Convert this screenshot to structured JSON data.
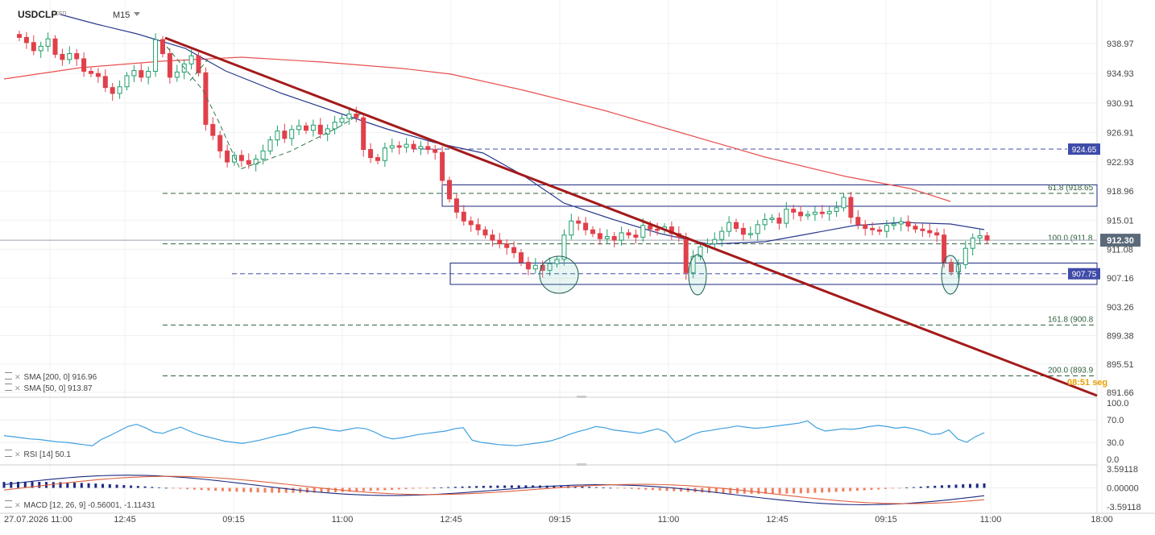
{
  "symbol": "USDCLP",
  "symbol_type": "CFD",
  "timeframe": "M15",
  "indicators": {
    "sma200": "SMA [200, 0] 916.96",
    "sma50": "SMA [50, 0] 913.87",
    "rsi": "RSI [14] 50.1",
    "macd": "MACD [12, 26, 9] -0.56001, -1.11431"
  },
  "colors": {
    "bull": "#1e9e6a",
    "bear": "#e0404a",
    "trendline": "#a31a1a",
    "sma200": "#e85050",
    "sma50": "#2b3a8c",
    "rsi": "#3fa0e0",
    "macd_line": "#1b2a80",
    "signal_line": "#e06040",
    "hist_pos": "#1b2a80",
    "hist_neg": "#f08060",
    "price_tag": "#5a6a7a",
    "level_tag": "#3f4ba8"
  },
  "chart_data": [
    {
      "type": "candlestick",
      "title": "USDCLP",
      "y_ticks": [
        "938.97",
        "934.93",
        "930.91",
        "926.91",
        "922.93",
        "918.96",
        "915.01",
        "911.08",
        "907.16",
        "903.26",
        "899.38",
        "895.51",
        "891.66"
      ],
      "ylim": [
        891.66,
        938.97
      ],
      "x_ticks": [
        "27.07.2026 11:00",
        "12:45",
        "09:15",
        "11:00",
        "12:45",
        "09:15",
        "11:00",
        "12:45",
        "09:15",
        "11:00",
        "18:00"
      ],
      "current_price": "912.30",
      "horizontal_levels": [
        {
          "value": 924.65,
          "label": "924.65"
        },
        {
          "value": 907.75,
          "label": "907.75"
        }
      ],
      "fibonacci_levels": [
        {
          "value": 918.65,
          "label": "61.8 (918.65"
        },
        {
          "value": 911.8,
          "label": "100.0 (911.8"
        },
        {
          "value": 900.8,
          "label": "161.8 (900.8"
        },
        {
          "value": 893.9,
          "label": "200.0 (893.9"
        }
      ],
      "zones": [
        {
          "top": 919.8,
          "bottom": 916.9
        },
        {
          "top": 909.2,
          "bottom": 906.3
        }
      ],
      "countdown": "08:51 seg",
      "series": [
        {
          "name": "SMA [200, 0]",
          "last": 916.96
        },
        {
          "name": "SMA [50, 0]",
          "last": 913.87
        }
      ],
      "closes": [
        939.8,
        939.1,
        938.0,
        938.6,
        939.6,
        937.5,
        936.8,
        937.6,
        936.9,
        935.2,
        934.9,
        934.5,
        933.0,
        932.2,
        933.1,
        934.6,
        935.3,
        934.4,
        935.2,
        939.5,
        937.6,
        934.4,
        935.1,
        936.2,
        937.3,
        935.0,
        928.0,
        926.5,
        924.4,
        922.9,
        923.8,
        923.1,
        922.6,
        923.3,
        924.4,
        925.9,
        927.1,
        926.1,
        927.3,
        927.8,
        927.2,
        927.9,
        926.7,
        927.4,
        928.3,
        928.8,
        929.4,
        928.9,
        924.6,
        923.5,
        923.1,
        924.8,
        925.1,
        924.9,
        925.3,
        924.7,
        925.0,
        924.6,
        924.2,
        920.4,
        917.9,
        916.1,
        914.9,
        914.4,
        913.7,
        913.0,
        912.3,
        911.8,
        911.3,
        910.6,
        909.3,
        908.4,
        908.9,
        908.2,
        909.1,
        909.7,
        913.0,
        914.9,
        914.6,
        913.7,
        913.2,
        912.5,
        912.8,
        912.3,
        913.3,
        913.0,
        912.7,
        914.3,
        913.8,
        913.7,
        914.1,
        913.2,
        912.7,
        907.9,
        910.1,
        911.4,
        911.8,
        912.4,
        913.5,
        914.7,
        913.9,
        913.1,
        913.2,
        914.4,
        915.1,
        915.3,
        914.6,
        916.5,
        916.1,
        915.6,
        915.8,
        916.1,
        915.9,
        916.2,
        916.7,
        918.1,
        915.4,
        914.4,
        913.9,
        913.7,
        913.5,
        914.3,
        914.5,
        914.8,
        914.2,
        913.8,
        913.6,
        913.3,
        913.0,
        909.3,
        908.0,
        909.0,
        911.2,
        912.6,
        912.9,
        912.3
      ],
      "rsi_ylim": [
        0,
        100
      ],
      "rsi_ticks": [
        "100.0",
        "70.0",
        "30.0",
        "0.0"
      ],
      "rsi_last": 50.1,
      "macd_ylim": [
        -3.59118,
        3.59118
      ],
      "macd_ticks": [
        "3.59118",
        "0.00000",
        "-3.59118"
      ],
      "macd_last": -0.56001,
      "signal_last": -1.11431
    }
  ]
}
